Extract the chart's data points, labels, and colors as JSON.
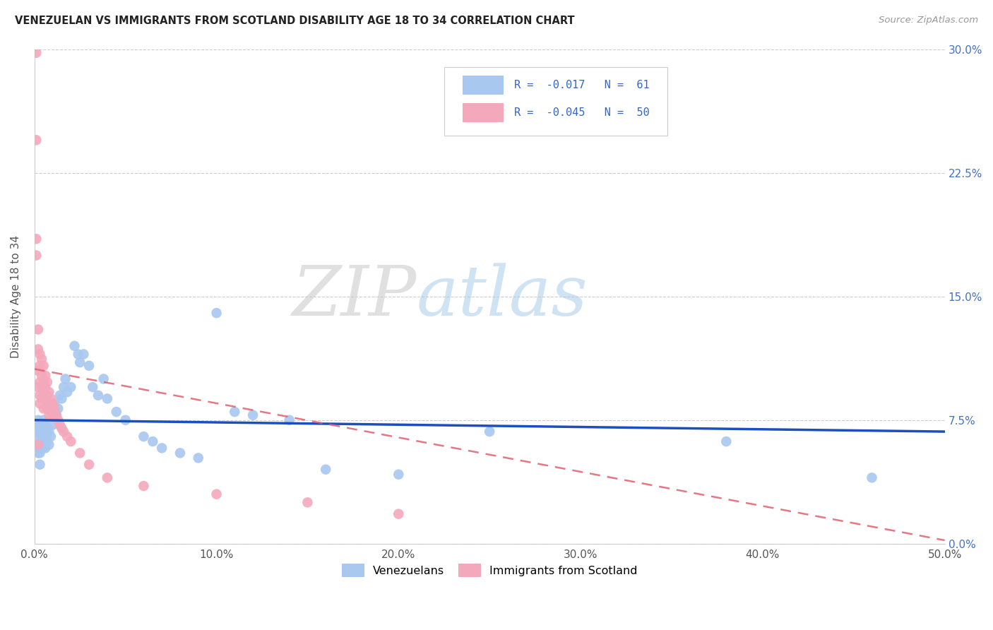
{
  "title": "VENEZUELAN VS IMMIGRANTS FROM SCOTLAND DISABILITY AGE 18 TO 34 CORRELATION CHART",
  "source": "Source: ZipAtlas.com",
  "ylabel": "Disability Age 18 to 34",
  "xlabel_ticks": [
    "0.0%",
    "10.0%",
    "20.0%",
    "30.0%",
    "40.0%",
    "50.0%"
  ],
  "ylabel_ticks": [
    "0.0%",
    "7.5%",
    "15.0%",
    "22.5%",
    "30.0%"
  ],
  "xlim": [
    0.0,
    0.5
  ],
  "ylim": [
    0.0,
    0.3
  ],
  "r_blue": -0.017,
  "n_blue": 61,
  "r_pink": -0.045,
  "n_pink": 50,
  "blue_color": "#A8C8F0",
  "pink_color": "#F4A8BC",
  "trendline_blue_color": "#1B4FBF",
  "trendline_pink_color": "#E06070",
  "watermark_zip": "ZIP",
  "watermark_atlas": "atlas",
  "blue_scatter_x": [
    0.001,
    0.001,
    0.002,
    0.002,
    0.002,
    0.002,
    0.003,
    0.003,
    0.003,
    0.003,
    0.003,
    0.004,
    0.004,
    0.004,
    0.005,
    0.005,
    0.005,
    0.006,
    0.006,
    0.006,
    0.007,
    0.007,
    0.008,
    0.008,
    0.009,
    0.01,
    0.01,
    0.011,
    0.012,
    0.013,
    0.014,
    0.015,
    0.016,
    0.017,
    0.018,
    0.02,
    0.022,
    0.024,
    0.025,
    0.027,
    0.03,
    0.032,
    0.035,
    0.038,
    0.04,
    0.045,
    0.05,
    0.06,
    0.065,
    0.07,
    0.08,
    0.09,
    0.1,
    0.11,
    0.12,
    0.14,
    0.16,
    0.2,
    0.25,
    0.38,
    0.46
  ],
  "blue_scatter_y": [
    0.068,
    0.058,
    0.075,
    0.07,
    0.063,
    0.055,
    0.072,
    0.068,
    0.06,
    0.055,
    0.048,
    0.073,
    0.065,
    0.058,
    0.075,
    0.068,
    0.06,
    0.072,
    0.065,
    0.058,
    0.07,
    0.062,
    0.068,
    0.06,
    0.065,
    0.08,
    0.072,
    0.085,
    0.078,
    0.082,
    0.09,
    0.088,
    0.095,
    0.1,
    0.092,
    0.095,
    0.12,
    0.115,
    0.11,
    0.115,
    0.108,
    0.095,
    0.09,
    0.1,
    0.088,
    0.08,
    0.075,
    0.065,
    0.062,
    0.058,
    0.055,
    0.052,
    0.14,
    0.08,
    0.078,
    0.075,
    0.045,
    0.042,
    0.068,
    0.062,
    0.04
  ],
  "pink_scatter_x": [
    0.001,
    0.001,
    0.001,
    0.001,
    0.002,
    0.002,
    0.002,
    0.002,
    0.002,
    0.003,
    0.003,
    0.003,
    0.003,
    0.003,
    0.004,
    0.004,
    0.004,
    0.004,
    0.005,
    0.005,
    0.005,
    0.005,
    0.006,
    0.006,
    0.006,
    0.007,
    0.007,
    0.007,
    0.008,
    0.008,
    0.008,
    0.009,
    0.009,
    0.01,
    0.01,
    0.011,
    0.012,
    0.013,
    0.014,
    0.015,
    0.016,
    0.018,
    0.02,
    0.025,
    0.03,
    0.04,
    0.06,
    0.1,
    0.15,
    0.2
  ],
  "pink_scatter_y": [
    0.298,
    0.245,
    0.185,
    0.175,
    0.13,
    0.118,
    0.105,
    0.095,
    0.06,
    0.115,
    0.108,
    0.098,
    0.09,
    0.085,
    0.112,
    0.102,
    0.095,
    0.088,
    0.108,
    0.098,
    0.09,
    0.082,
    0.102,
    0.095,
    0.088,
    0.098,
    0.09,
    0.082,
    0.092,
    0.085,
    0.078,
    0.088,
    0.08,
    0.085,
    0.078,
    0.082,
    0.078,
    0.075,
    0.072,
    0.07,
    0.068,
    0.065,
    0.062,
    0.055,
    0.048,
    0.04,
    0.035,
    0.03,
    0.025,
    0.018
  ],
  "blue_trend_x0": 0.0,
  "blue_trend_x1": 0.5,
  "blue_trend_y0": 0.075,
  "blue_trend_y1": 0.068,
  "pink_trend_x0": 0.0,
  "pink_trend_x1": 0.5,
  "pink_trend_y0": 0.106,
  "pink_trend_y1": 0.002
}
